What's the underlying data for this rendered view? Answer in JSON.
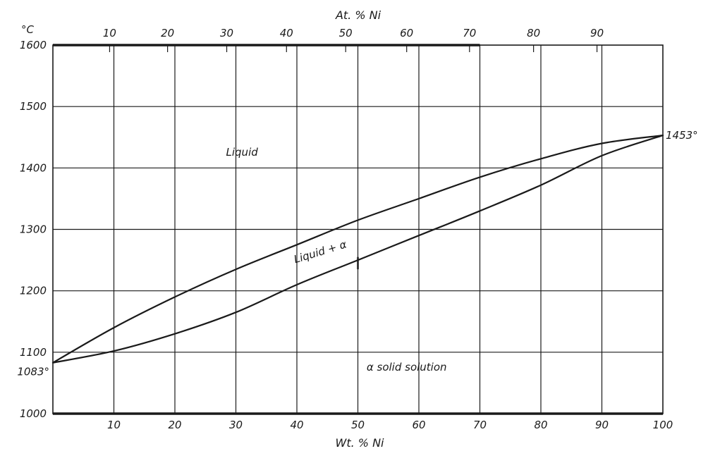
{
  "chart_data": {
    "type": "line",
    "title": "",
    "xlabel": "Wt. % Ni",
    "x2label": "At. % Ni",
    "ylabel": "°C",
    "xlim": [
      0,
      100
    ],
    "ylim": [
      1000,
      1600
    ],
    "grid": true,
    "x_ticks": [
      10,
      20,
      30,
      40,
      50,
      60,
      70,
      80,
      90,
      100
    ],
    "x_tick_labels": [
      "10",
      "20",
      "30",
      "40",
      "50",
      "60",
      "70",
      "80",
      "90",
      "100"
    ],
    "y_ticks": [
      1000,
      1100,
      1200,
      1300,
      1400,
      1500,
      1600
    ],
    "y_tick_labels": [
      "1000",
      "1100",
      "1200",
      "1300",
      "1400",
      "1500",
      "1600"
    ],
    "top_ticks": [
      {
        "label": "10",
        "wt": 9.3
      },
      {
        "label": "20",
        "wt": 18.8
      },
      {
        "label": "30",
        "wt": 28.5
      },
      {
        "label": "40",
        "wt": 38.3
      },
      {
        "label": "50",
        "wt": 48.0
      },
      {
        "label": "60",
        "wt": 58.0
      },
      {
        "label": "70",
        "wt": 68.3
      },
      {
        "label": "80",
        "wt": 78.8
      },
      {
        "label": "90",
        "wt": 89.2
      }
    ],
    "series": [
      {
        "x": [
          0,
          10,
          20,
          30,
          40,
          50,
          60,
          70,
          80,
          90,
          100
        ],
        "y": [
          1083,
          1140,
          1190,
          1235,
          1275,
          1315,
          1350,
          1385,
          1415,
          1440,
          1453
        ]
      },
      {
        "x": [
          0,
          10,
          20,
          30,
          40,
          50,
          60,
          70,
          80,
          90,
          100
        ],
        "y": [
          1083,
          1102,
          1130,
          1165,
          1210,
          1250,
          1290,
          1330,
          1372,
          1420,
          1453
        ]
      }
    ],
    "annotations": [
      {
        "text": "Liquid",
        "x": 31,
        "y": 1420
      },
      {
        "text": "Liquid + α",
        "x": 44,
        "y": 1258
      },
      {
        "text": "α solid solution",
        "x": 58,
        "y": 1070
      },
      {
        "text": "1453°",
        "x": 100,
        "y": 1453
      },
      {
        "text": "1083°",
        "x": 0,
        "y": 1083
      }
    ]
  }
}
